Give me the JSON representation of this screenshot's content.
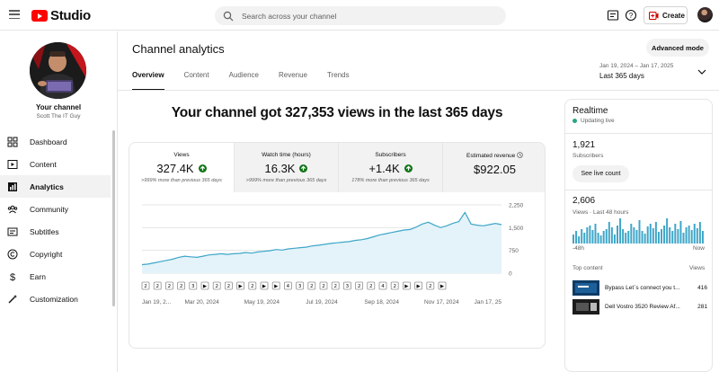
{
  "app": {
    "logo_text": "Studio"
  },
  "search": {
    "placeholder": "Search across your channel"
  },
  "header": {
    "create_label": "Create"
  },
  "sidebar": {
    "channel_title": "Your channel",
    "channel_name": "Scott The IT Guy",
    "items": [
      {
        "label": "Dashboard",
        "icon": "dashboard-icon",
        "active": false
      },
      {
        "label": "Content",
        "icon": "content-icon",
        "active": false
      },
      {
        "label": "Analytics",
        "icon": "analytics-icon",
        "active": true
      },
      {
        "label": "Community",
        "icon": "community-icon",
        "active": false
      },
      {
        "label": "Subtitles",
        "icon": "subtitles-icon",
        "active": false
      },
      {
        "label": "Copyright",
        "icon": "copyright-icon",
        "active": false
      },
      {
        "label": "Earn",
        "icon": "earn-icon",
        "active": false
      },
      {
        "label": "Customization",
        "icon": "customization-icon",
        "active": false
      }
    ]
  },
  "main": {
    "title": "Channel analytics",
    "advanced_label": "Advanced mode",
    "tabs": [
      {
        "label": "Overview",
        "active": true
      },
      {
        "label": "Content",
        "active": false
      },
      {
        "label": "Audience",
        "active": false
      },
      {
        "label": "Revenue",
        "active": false
      },
      {
        "label": "Trends",
        "active": false
      }
    ],
    "date_range": {
      "dates": "Jan 19, 2024 – Jan 17, 2025",
      "label": "Last 365 days"
    },
    "headline": "Your channel got 327,353 views in the last 365 days",
    "kpis": [
      {
        "label": "Views",
        "value": "327.4K",
        "note": ">999% more than previous 365 days",
        "trend": "up"
      },
      {
        "label": "Watch time (hours)",
        "value": "16.3K",
        "note": ">999% more than previous 365 days",
        "trend": "up"
      },
      {
        "label": "Subscribers",
        "value": "+1.4K",
        "note": "178% more than previous 365 days",
        "trend": "up"
      },
      {
        "label": "Estimated revenue",
        "value": "$922.05",
        "note": "",
        "trend": "none"
      }
    ]
  },
  "chart_data": {
    "type": "area",
    "metric": "Views",
    "x_tick_labels": [
      "Jan 19, 2...",
      "Mar 20, 2024",
      "May 19, 2024",
      "Jul 19, 2024",
      "Sep 18, 2024",
      "Nov 17, 2024",
      "Jan 17, 25"
    ],
    "y_ticks": [
      0,
      750,
      1500,
      2250
    ],
    "y_tick_labels": [
      "0",
      "750",
      "1,500",
      "2,250"
    ],
    "ylim": [
      0,
      2250
    ],
    "grid": true,
    "area_color": "#e3f3f9",
    "line_color": "#3ea6c8",
    "values": [
      280,
      300,
      340,
      380,
      420,
      460,
      520,
      560,
      540,
      520,
      560,
      600,
      620,
      640,
      620,
      640,
      650,
      680,
      660,
      700,
      720,
      740,
      780,
      760,
      800,
      820,
      840,
      860,
      900,
      920,
      950,
      980,
      1000,
      1020,
      1040,
      1080,
      1100,
      1140,
      1200,
      1260,
      1300,
      1340,
      1380,
      1420,
      1440,
      1520,
      1620,
      1680,
      1580,
      1500,
      1560,
      1640,
      1700,
      2000,
      1620,
      1580,
      1560,
      1600,
      1640,
      1600
    ],
    "markers": [
      "2",
      "2",
      "2",
      "2",
      "3",
      "▶",
      "2",
      "2",
      "▶",
      "2",
      "▶",
      "▶",
      "4",
      "3",
      "2",
      "2",
      "2",
      "3",
      "2",
      "2",
      "4",
      "2",
      "▶",
      "▶",
      "2",
      "▶"
    ]
  },
  "realtime": {
    "title": "Realtime",
    "status": "Updating live",
    "subscribers_value": "1,921",
    "subscribers_label": "Subscribers",
    "button_label": "See live count",
    "views_value": "2,606",
    "views_label": "Views · Last 48 hours",
    "bar_values": [
      10,
      14,
      8,
      16,
      12,
      18,
      20,
      15,
      22,
      12,
      9,
      14,
      16,
      24,
      18,
      10,
      20,
      28,
      16,
      12,
      14,
      22,
      18,
      15,
      26,
      14,
      11,
      19,
      22,
      17,
      24,
      13,
      16,
      20,
      28,
      18,
      14,
      22,
      16,
      25,
      12,
      18,
      20,
      15,
      22,
      17,
      24,
      14
    ],
    "axis_start": "-48h",
    "axis_end": "Now",
    "top_content_label": "Top content",
    "top_content_metric": "Views",
    "top_content": [
      {
        "title": "Bypass Let`s connect you t...",
        "views": "416"
      },
      {
        "title": "Dell Vostro 3520 Review Af...",
        "views": "281"
      }
    ]
  },
  "colors": {
    "brand": "#ff0000",
    "accent": "#3ea6c8",
    "up": "#107516",
    "live": "#29a683"
  }
}
